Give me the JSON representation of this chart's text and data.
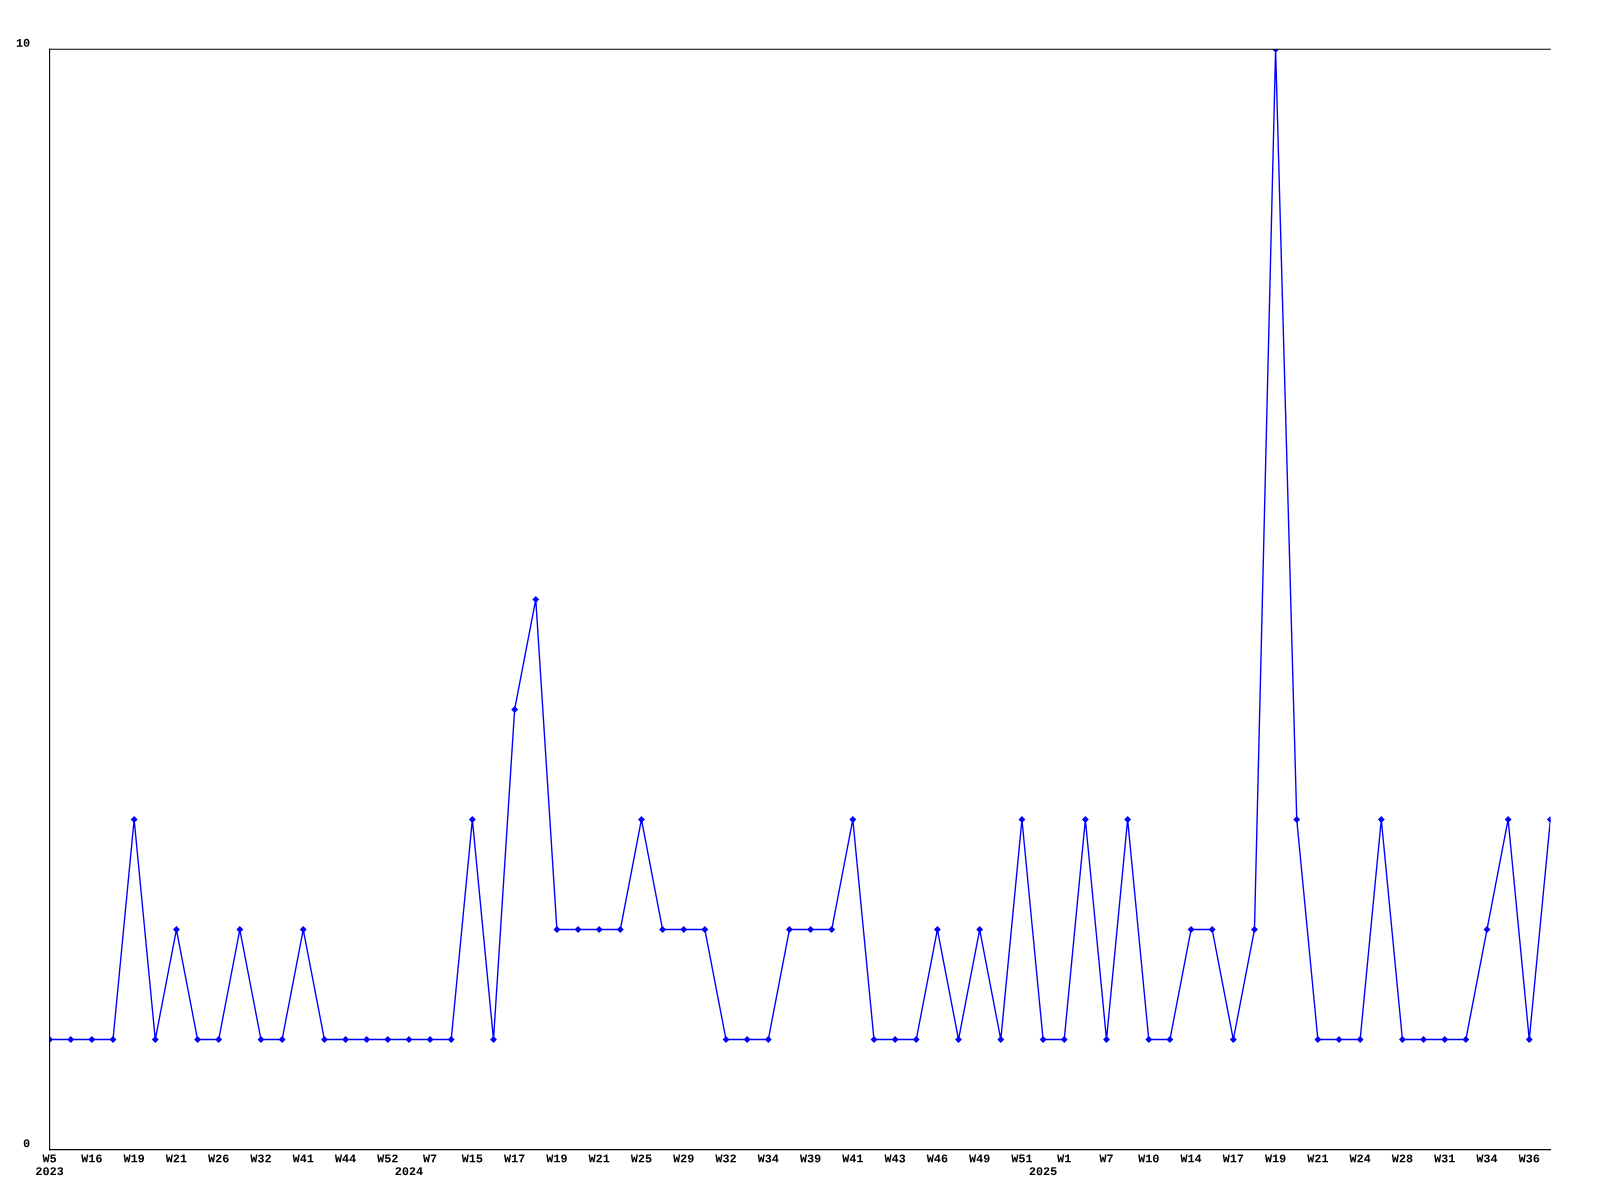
{
  "chart_data": {
    "type": "line",
    "categories": [
      "W5\n2023",
      null,
      "W16",
      null,
      "W19",
      null,
      "W21",
      null,
      "W26",
      null,
      "W32",
      null,
      "W41",
      null,
      "W44",
      null,
      "W52",
      "\n2024",
      "W7",
      null,
      "W15",
      null,
      "W17",
      null,
      "W19",
      null,
      "W21",
      null,
      "W25",
      null,
      "W29",
      null,
      "W32",
      null,
      "W34",
      null,
      "W39",
      null,
      "W41",
      null,
      "W43",
      null,
      "W46",
      null,
      "W49",
      null,
      "W51",
      "\n2025",
      "W1",
      null,
      "W7",
      null,
      "W10",
      null,
      "W14",
      null,
      "W17",
      null,
      "W19",
      null,
      "W21",
      null,
      "W24",
      null,
      "W28",
      null,
      "W31",
      null,
      "W34",
      null,
      "W36",
      null
    ],
    "values": [
      1,
      1,
      1,
      1,
      3,
      1,
      2,
      1,
      1,
      2,
      1,
      1,
      2,
      1,
      1,
      1,
      1,
      1,
      1,
      1,
      3,
      1,
      4,
      5,
      2,
      2,
      2,
      2,
      3,
      2,
      2,
      2,
      1,
      1,
      1,
      2,
      2,
      2,
      3,
      1,
      1,
      1,
      2,
      1,
      2,
      1,
      3,
      1,
      1,
      3,
      1,
      3,
      1,
      1,
      2,
      2,
      1,
      2,
      10,
      3,
      1,
      1,
      1,
      3,
      1,
      1,
      1,
      1,
      2,
      3,
      1,
      3
    ],
    "color": "#0000ff",
    "ylim": [
      0,
      10
    ],
    "yticks": [
      0,
      10
    ],
    "marker": "diamond",
    "line_style": "solid",
    "grid": false,
    "legend": false
  }
}
